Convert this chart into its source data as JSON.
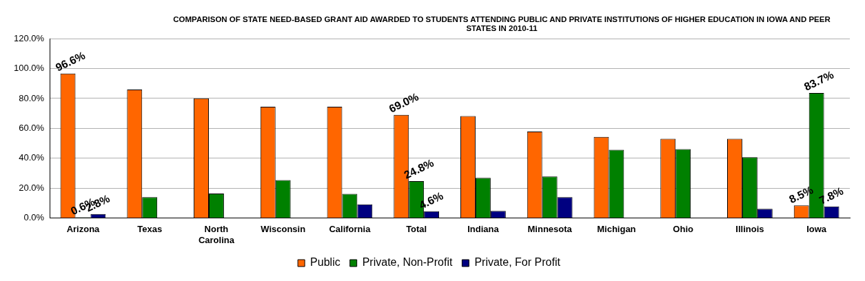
{
  "chart_data": {
    "type": "bar",
    "title": "COMPARISON OF STATE NEED-BASED GRANT AID AWARDED TO STUDENTS ATTENDING PUBLIC AND PRIVATE INSTITUTIONS OF HIGHER EDUCATION IN IOWA AND PEER STATES IN 2010-11",
    "categories": [
      "Arizona",
      "Texas",
      "North Carolina",
      "Wisconsin",
      "California",
      "Total",
      "Indiana",
      "Minnesota",
      "Michigan",
      "Ohio",
      "Illinois",
      "Iowa"
    ],
    "series": [
      {
        "name": "Public",
        "color": "#ff6600",
        "values": [
          96.6,
          86.0,
          80.1,
          74.4,
          74.4,
          69.0,
          68.2,
          57.9,
          54.3,
          53.0,
          53.0,
          8.5
        ],
        "value_labels": [
          "96.6%",
          null,
          null,
          null,
          null,
          "69.0%",
          null,
          null,
          null,
          null,
          null,
          "8.5%"
        ]
      },
      {
        "name": "Private, Non-Profit",
        "color": "#008000",
        "values": [
          0.6,
          14.1,
          16.5,
          25.4,
          16.2,
          24.8,
          26.9,
          27.9,
          45.7,
          46.2,
          40.7,
          83.7
        ],
        "value_labels": [
          "0.6%",
          null,
          null,
          null,
          null,
          "24.8%",
          null,
          null,
          null,
          null,
          null,
          "83.7%"
        ]
      },
      {
        "name": "Private, For Profit",
        "color": "#000080",
        "values": [
          2.8,
          null,
          null,
          null,
          9.2,
          4.6,
          4.9,
          14.1,
          null,
          null,
          6.2,
          7.8
        ],
        "value_labels": [
          "2.8%",
          null,
          null,
          null,
          null,
          "4.6%",
          null,
          null,
          null,
          null,
          null,
          "7.8%"
        ]
      }
    ],
    "ylim": [
      0,
      120
    ],
    "yticks": [
      {
        "value": 0,
        "label": "0.0%"
      },
      {
        "value": 20,
        "label": "20.0%"
      },
      {
        "value": 40,
        "label": "40.0%"
      },
      {
        "value": 60,
        "label": "60.0%"
      },
      {
        "value": 80,
        "label": "80.0%"
      },
      {
        "value": 100,
        "label": "100.0%"
      },
      {
        "value": 120,
        "label": "120.0%"
      }
    ],
    "grid": "y",
    "legend": "bottom"
  }
}
